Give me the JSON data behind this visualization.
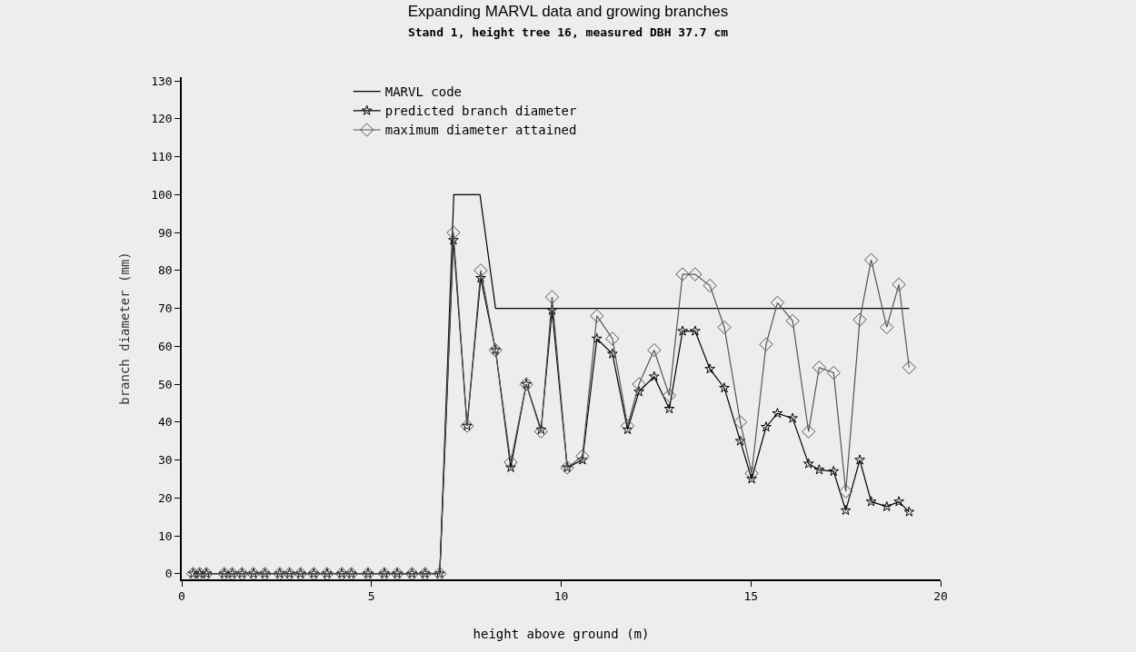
{
  "chart_data": {
    "type": "line",
    "title": "Expanding MARVL data and growing branches",
    "subtitle": "Stand 1, height tree 16, measured DBH 37.7 cm",
    "xlabel": "height above ground (m)",
    "ylabel": "branch diameter (mm)",
    "x": [
      0.3,
      0.47,
      0.65,
      1.12,
      1.33,
      1.59,
      1.89,
      2.19,
      2.58,
      2.84,
      3.13,
      3.48,
      3.83,
      4.22,
      4.47,
      4.91,
      5.34,
      5.68,
      6.07,
      6.41,
      6.8,
      7.16,
      7.52,
      7.88,
      8.27,
      8.67,
      9.08,
      9.47,
      9.76,
      10.16,
      10.56,
      10.94,
      11.35,
      11.75,
      12.05,
      12.45,
      12.85,
      13.2,
      13.53,
      13.92,
      14.3,
      14.72,
      15.02,
      15.4,
      15.7,
      16.1,
      16.52,
      16.8,
      17.18,
      17.5,
      17.87,
      18.17,
      18.58,
      18.9,
      19.17
    ],
    "series": [
      {
        "name": "MARVL code",
        "color": "#000000",
        "marker": "none",
        "x": [
          0.3,
          6.8,
          7.17,
          7.86,
          8.27,
          19.17
        ],
        "values": [
          0,
          0,
          100,
          100,
          70,
          70
        ]
      },
      {
        "name": "predicted branch diameter",
        "color": "#000000",
        "marker": "star",
        "values": [
          0,
          0,
          0,
          0,
          0,
          0,
          0,
          0,
          0,
          0,
          0,
          0,
          0,
          0,
          0,
          0,
          0,
          0,
          0,
          0,
          0,
          88,
          39,
          78,
          59,
          28,
          50,
          38,
          69.5,
          28,
          30,
          62,
          58,
          38,
          48,
          52,
          43.5,
          64,
          64,
          54,
          49,
          35,
          25,
          38.7,
          42.3,
          41,
          29,
          27.4,
          27,
          16.7,
          30,
          19,
          17.7,
          19,
          16.3
        ]
      },
      {
        "name": "maximum diameter attained",
        "color": "#555555",
        "marker": "diamond",
        "values": [
          0,
          0,
          0,
          0,
          0,
          0,
          0,
          0,
          0,
          0,
          0,
          0,
          0,
          0,
          0,
          0,
          0,
          0,
          0,
          0,
          0,
          90,
          39,
          80,
          59,
          29.4,
          50,
          37.5,
          73,
          28,
          31,
          68,
          62,
          39,
          50,
          59,
          47,
          79,
          79,
          76,
          65,
          40,
          26.5,
          60.5,
          71.5,
          66.7,
          37.5,
          54.4,
          53,
          21.7,
          67,
          82.8,
          65,
          76.3,
          54.4
        ]
      }
    ],
    "xlim": [
      0,
      20
    ],
    "xticks": [
      0,
      5,
      10,
      15,
      20
    ],
    "ylim": [
      -1.5,
      131
    ],
    "yticks": [
      0,
      10,
      20,
      30,
      40,
      50,
      60,
      70,
      80,
      90,
      100,
      110,
      120,
      130
    ],
    "grid": false,
    "legend": "top",
    "line_style": "solid"
  }
}
